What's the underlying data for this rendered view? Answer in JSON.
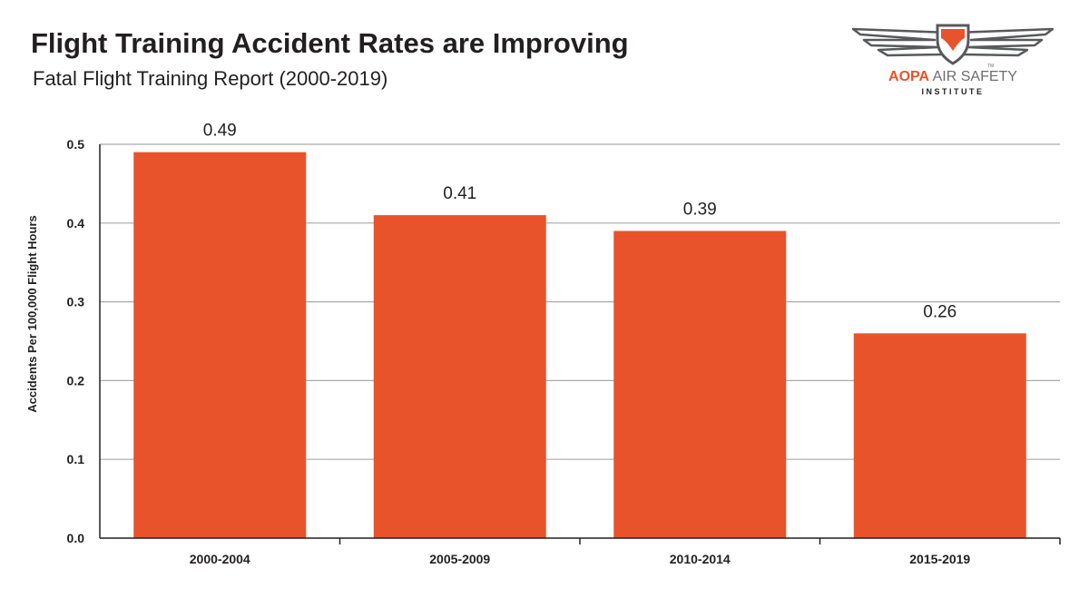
{
  "header": {
    "title": "Flight Training Accident Rates are Improving",
    "subtitle": "Fatal Flight Training Report (2000-2019)"
  },
  "logo": {
    "icon": "wings-shield-icon",
    "brand": "AOPA",
    "name": " AIR SAFETY",
    "sub": "INSTITUTE",
    "tm": "TM"
  },
  "colors": {
    "bar": "#e8532b",
    "grid": "#a7a9ac",
    "axis": "#231f20",
    "text": "#231f20"
  },
  "chart_data": {
    "type": "bar",
    "title": "Flight Training Accident Rates are Improving",
    "subtitle": "Fatal Flight Training Report (2000-2019)",
    "xlabel": "",
    "ylabel": "Accidents Per 100,000 Flight Hours",
    "categories": [
      "2000-2004",
      "2005-2009",
      "2010-2014",
      "2015-2019"
    ],
    "values": [
      0.49,
      0.41,
      0.39,
      0.26
    ],
    "value_labels": [
      "0.49",
      "0.41",
      "0.39",
      "0.26"
    ],
    "ylim": [
      0,
      0.5
    ],
    "yticks": [
      0.0,
      0.1,
      0.2,
      0.3,
      0.4,
      0.5
    ],
    "ytick_labels": [
      "0.0",
      "0.1",
      "0.2",
      "0.3",
      "0.4",
      "0.5"
    ],
    "grid": true,
    "legend": "none"
  }
}
